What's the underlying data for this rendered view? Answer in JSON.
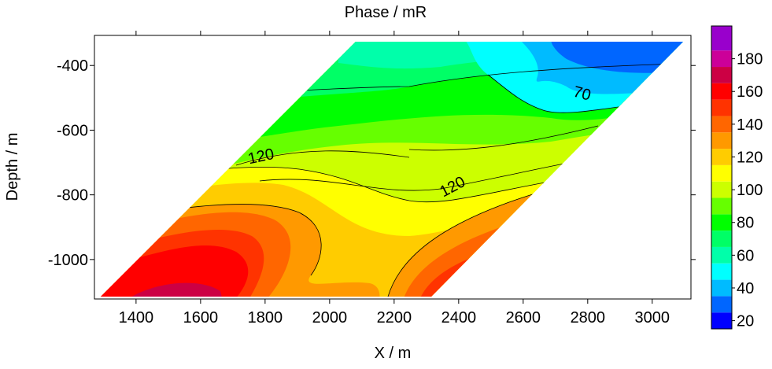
{
  "chart_data": {
    "type": "contour",
    "title": "Phase / mR",
    "x_label": "X / m",
    "y_label": "Depth / m",
    "xlim": [
      1271,
      3120
    ],
    "ylim": [
      -1122,
      -307
    ],
    "xticks": [
      1400,
      1600,
      1800,
      2000,
      2200,
      2400,
      2600,
      2800,
      3000
    ],
    "yticks": [
      -400,
      -600,
      -800,
      -1000
    ],
    "contour_labels": [
      120,
      120,
      70
    ],
    "colorbar": {
      "lim": [
        15,
        200
      ],
      "levels": [
        15,
        25,
        35,
        45,
        55,
        65,
        75,
        85,
        95,
        105,
        115,
        125,
        135,
        145,
        155,
        165,
        175,
        185,
        200
      ],
      "colors": [
        "#0000ff",
        "#0066ff",
        "#00bbff",
        "#00ffff",
        "#00ffaa",
        "#00ff66",
        "#00ff00",
        "#66ff00",
        "#ccff00",
        "#ffff00",
        "#ffcc00",
        "#ff9900",
        "#ff6600",
        "#ff3300",
        "#ff0000",
        "#cc0044",
        "#cc0099",
        "#9900cc"
      ],
      "ticks": [
        20,
        40,
        60,
        80,
        100,
        120,
        140,
        160,
        180
      ]
    }
  }
}
